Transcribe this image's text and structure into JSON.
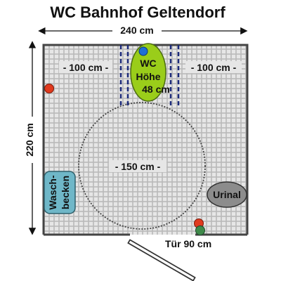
{
  "title": "WC Bahnhof Geltendorf",
  "dimensions": {
    "width_label": "240 cm",
    "height_label": "220 cm",
    "left_clearance_label": "- 100 cm -",
    "right_clearance_label": "- 100 cm -",
    "turning_circle_label": "- 150 cm -",
    "door_label": "Tür 90 cm"
  },
  "fixtures": {
    "wc_line1": "WC",
    "wc_line2": "Höhe",
    "wc_line3": "48 cm",
    "sink_line1": "Wasch-",
    "sink_line2": "becken",
    "urinal": "Urinal"
  },
  "colors": {
    "wc": "#9acd1a",
    "sink": "#6fb7c8",
    "urinal": "#8c8c8c",
    "red_marker": "#e03a1e",
    "blue_marker": "#1e6fd6",
    "green_marker": "#3f8a4a",
    "grid": "#e3e3e3",
    "dashed_line": "#1c2a7a"
  },
  "icons": {
    "marker_red": "red-dot-icon",
    "marker_blue": "blue-dot-icon",
    "marker_green": "green-dot-icon"
  }
}
